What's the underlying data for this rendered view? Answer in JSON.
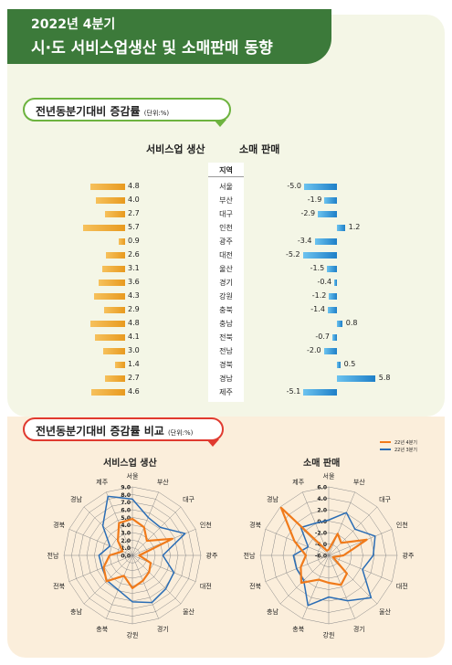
{
  "header": {
    "year": "2022년 4분기",
    "title": "시·도 서비스업생산 및 소매판매 동향"
  },
  "section1": {
    "label": "전년동분기대비 증감률",
    "unit": "(단위:%)"
  },
  "section2": {
    "label": "전년동분기대비 증감률 비교",
    "unit": "(단위:%)"
  },
  "colors": {
    "service": "#e89a1f",
    "retail": "#1e7fc8",
    "radar_current": "#f07a1a",
    "radar_prev": "#2a6db5"
  },
  "chart_data": [
    {
      "type": "bar",
      "title": "서비스업 생산",
      "region_header": "지역",
      "categories": [
        "서울",
        "부산",
        "대구",
        "인천",
        "광주",
        "대전",
        "울산",
        "경기",
        "강원",
        "충북",
        "충남",
        "전북",
        "전남",
        "경북",
        "경남",
        "제주"
      ],
      "values": [
        4.8,
        4.0,
        2.7,
        5.7,
        0.9,
        2.6,
        3.1,
        3.6,
        4.3,
        2.9,
        4.8,
        4.1,
        3.0,
        1.4,
        2.7,
        4.6
      ],
      "labels": [
        "4.8",
        "4.0",
        "2.7",
        "5.7",
        "0.9",
        "2.6",
        "3.1",
        "3.6",
        "4.3",
        "2.9",
        "4.8",
        "4.1",
        "3.0",
        "1.4",
        "2.7",
        "4.6"
      ]
    },
    {
      "type": "bar",
      "title": "소매 판매",
      "categories": [
        "서울",
        "부산",
        "대구",
        "인천",
        "광주",
        "대전",
        "울산",
        "경기",
        "강원",
        "충북",
        "충남",
        "전북",
        "전남",
        "경북",
        "경남",
        "제주"
      ],
      "values": [
        -5.0,
        -1.9,
        -2.9,
        1.2,
        -3.4,
        -5.2,
        -1.5,
        -0.4,
        -1.2,
        -1.4,
        0.8,
        -0.7,
        -2.0,
        0.5,
        5.8,
        -5.1
      ],
      "labels": [
        "-5.0",
        "-1.9",
        "-2.9",
        "1.2",
        "-3.4",
        "-5.2",
        "-1.5",
        "-0.4",
        "-1.2",
        "-1.4",
        "0.8",
        "-0.7",
        "-2.0",
        "0.5",
        "5.8",
        "-5.1"
      ]
    },
    {
      "type": "radar",
      "title": "서비스업 생산",
      "axes": [
        "서울",
        "부산",
        "대구",
        "인천",
        "광주",
        "대전",
        "울산",
        "경기",
        "강원",
        "충북",
        "충남",
        "전북",
        "전남",
        "경북",
        "경남",
        "제주"
      ],
      "range": [
        0,
        9
      ],
      "tick_labels": [
        "0.0",
        "1.0",
        "2.0",
        "3.0",
        "4.0",
        "5.0",
        "6.0",
        "7.0",
        "8.0",
        "9.0"
      ],
      "series": [
        {
          "name": "22년 4분기",
          "values": [
            4.8,
            4.0,
            2.7,
            5.7,
            0.9,
            2.6,
            3.1,
            3.6,
            4.3,
            2.9,
            4.8,
            4.1,
            3.0,
            1.4,
            2.7,
            4.6
          ]
        },
        {
          "name": "22년 3분기",
          "values": [
            7.4,
            5.4,
            5.2,
            7.5,
            4.0,
            5.9,
            6.2,
            6.7,
            6.1,
            4.9,
            4.7,
            4.3,
            4.4,
            3.2,
            5.5,
            8.4
          ]
        }
      ]
    },
    {
      "type": "radar",
      "title": "소매 판매",
      "axes": [
        "서울",
        "부산",
        "대구",
        "인천",
        "광주",
        "대전",
        "울산",
        "경기",
        "강원",
        "충북",
        "충남",
        "전북",
        "전남",
        "경북",
        "경남",
        "제주"
      ],
      "range": [
        -6,
        6
      ],
      "tick_labels": [
        "-6.0",
        "-4.0",
        "-2.0",
        "0.0",
        "2.0",
        "4.0",
        "6.0"
      ],
      "series": [
        {
          "name": "22년 4분기",
          "values": [
            -5.0,
            -1.9,
            -2.9,
            1.2,
            -3.4,
            -5.2,
            -1.5,
            -0.4,
            -1.2,
            -1.4,
            0.8,
            -0.7,
            -2.0,
            0.5,
            5.8,
            -5.1
          ]
        },
        {
          "name": "22년 3분기",
          "values": [
            0.2,
            2.1,
            0.5,
            2.8,
            1.8,
            0.4,
            4.5,
            2.6,
            1.3,
            3.5,
            0.2,
            0.1,
            0.2,
            -2.1,
            0.9,
            0.1
          ]
        }
      ]
    }
  ]
}
